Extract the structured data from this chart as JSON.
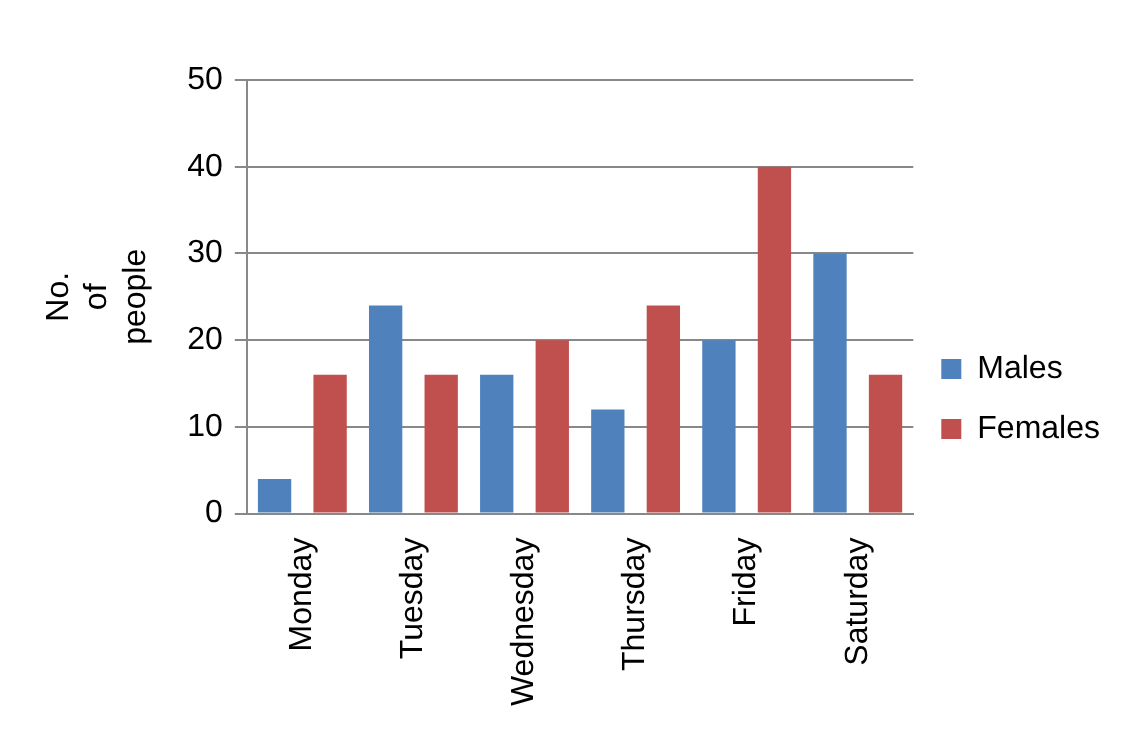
{
  "chart_data": {
    "type": "bar",
    "ylabel": "No. of people",
    "categories": [
      "Monday",
      "Tuesday",
      "Wednesday",
      "Thursday",
      "Friday",
      "Saturday"
    ],
    "series": [
      {
        "name": "Males",
        "color": "#4f81bd",
        "values": [
          4,
          24,
          16,
          12,
          20,
          30
        ]
      },
      {
        "name": "Females",
        "color": "#c0504d",
        "values": [
          16,
          16,
          20,
          24,
          40,
          16
        ]
      }
    ],
    "ylim": [
      0,
      50
    ],
    "yticks": [
      0,
      10,
      20,
      30,
      40,
      50
    ],
    "grid": "y",
    "legend": "right"
  }
}
